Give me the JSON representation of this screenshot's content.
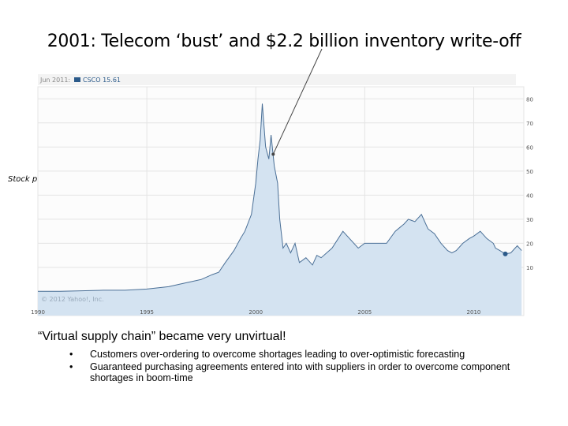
{
  "slide": {
    "title": "2001: Telecom ‘bust’ and $2.2 billion inventory write-off",
    "subtitle": "“Virtual supply chain” became very unvirtual!",
    "bullets": [
      "Customers over-ordering to overcome shortages leading to over-optimistic forecasting",
      "Guaranteed purchasing agreements entered into with suppliers in order to overcome component shortages in boom-time"
    ],
    "bullet_char": "•"
  },
  "colors": {
    "area_fill": "#d4e3f1",
    "line": "#4a6f96",
    "marker": "#2b5a8a",
    "grid": "#e4e4e4",
    "callout": "#444444"
  },
  "chart_data": {
    "type": "area",
    "ylabel": "Stock price",
    "header_date": "Jun 2011:",
    "header_series": "CSCO 15.61",
    "watermark": "© 2012 Yahoo!, Inc.",
    "xlim": [
      1990,
      2012.3
    ],
    "ylim": [
      -10,
      85
    ],
    "x_ticks": [
      1990,
      1995,
      2000,
      2005,
      2010
    ],
    "y_ticks": [
      10,
      20,
      30,
      40,
      50,
      60,
      70,
      80
    ],
    "grid": true,
    "highlight_point": {
      "x": 2011.45,
      "y": 15.61
    },
    "annotation": {
      "x": 2000.8,
      "y": 57
    },
    "series": [
      {
        "x": [
          1990,
          1991,
          1992,
          1993,
          1994,
          1995,
          1996,
          1996.5,
          1997,
          1997.5,
          1998,
          1998.3,
          1998.6,
          1999,
          1999.3,
          1999.5,
          1999.8,
          2000,
          2000.1,
          2000.2,
          2000.3,
          2000.45,
          2000.6,
          2000.7,
          2000.85,
          2001,
          2001.1,
          2001.25,
          2001.4,
          2001.6,
          2001.8,
          2002,
          2002.3,
          2002.6,
          2002.8,
          2003,
          2003.5,
          2004,
          2004.3,
          2004.7,
          2005,
          2005.5,
          2006,
          2006.4,
          2006.8,
          2007,
          2007.3,
          2007.6,
          2007.9,
          2008.2,
          2008.5,
          2008.8,
          2009,
          2009.2,
          2009.5,
          2009.8,
          2010,
          2010.3,
          2010.6,
          2010.9,
          2011,
          2011.2,
          2011.45,
          2011.7,
          2012,
          2012.2
        ],
        "y": [
          0.1,
          0.1,
          0.3,
          0.5,
          0.5,
          1,
          2,
          3,
          4,
          5,
          7,
          8,
          12,
          17,
          22,
          25,
          32,
          45,
          55,
          63,
          78,
          60,
          55,
          65,
          52,
          45,
          30,
          18,
          20,
          16,
          20,
          12,
          14,
          11,
          15,
          14,
          18,
          25,
          22,
          18,
          20,
          20,
          20,
          25,
          28,
          30,
          29,
          32,
          26,
          24,
          20,
          17,
          16,
          17,
          20,
          22,
          23,
          25,
          22,
          20,
          18,
          17,
          15.61,
          16,
          19,
          17
        ]
      }
    ]
  }
}
